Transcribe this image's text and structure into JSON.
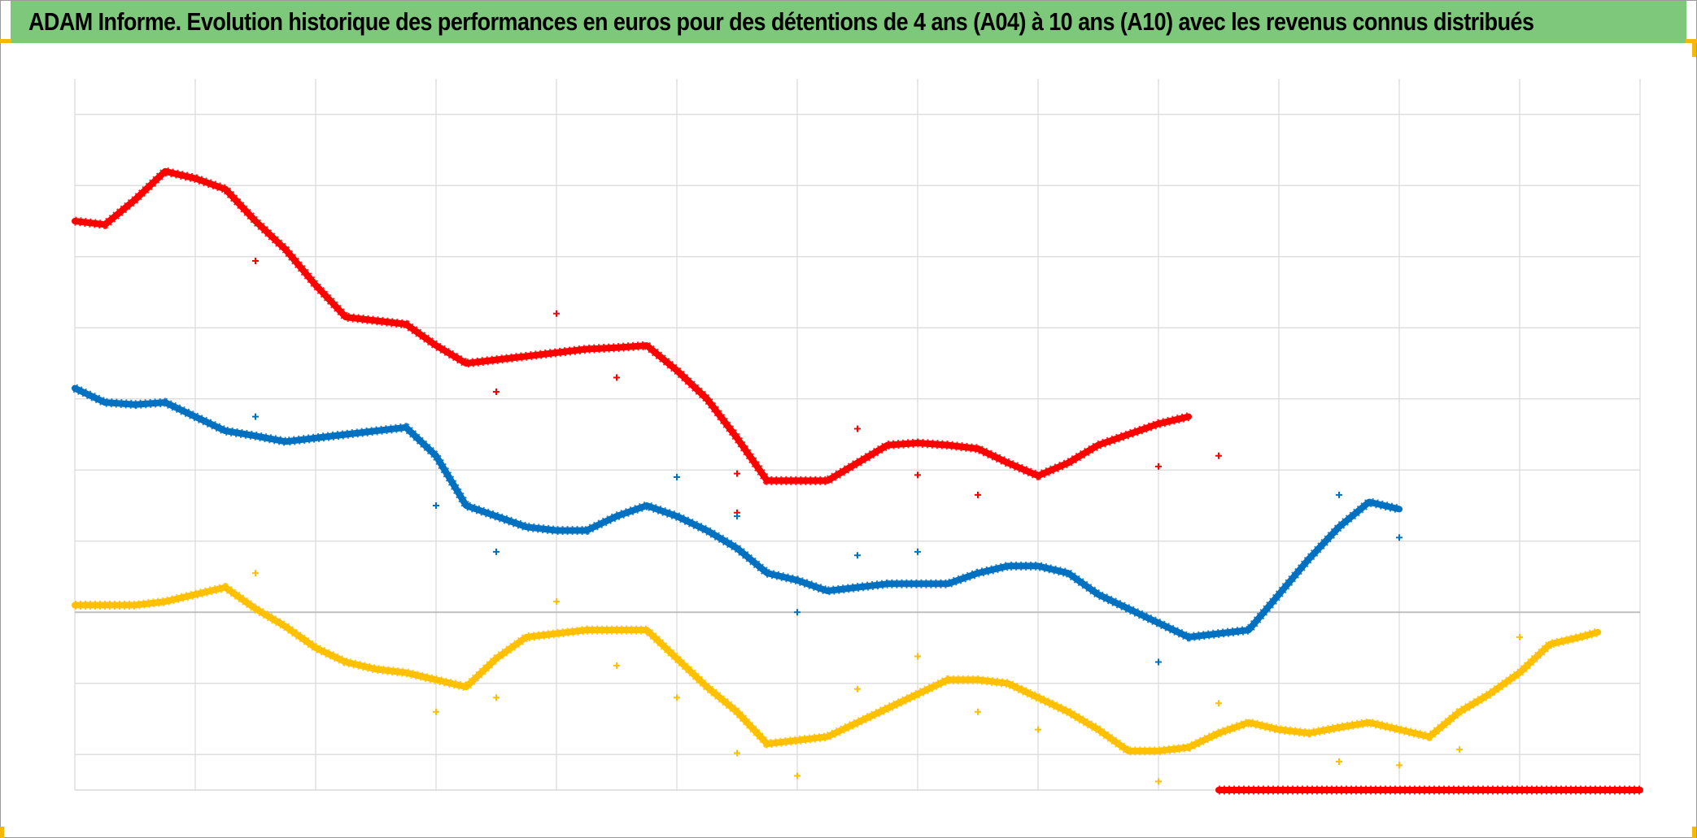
{
  "header": {
    "title": "ADAM Informe. Evolution historique des performances en euros pour des détentions de 4 ans (A04) à 10 ans (A10) avec les revenus connus distribués"
  },
  "colors": {
    "title_bg": "#7dc87a",
    "grid": "#d9d9d9",
    "zero_line": "#bfbfbf",
    "corner_marks": "#f2b90a"
  },
  "chart_data": {
    "type": "scatter",
    "title": "ADAM Informe. Evolution historique des performances en euros pour des détentions de 4 ans (A04) à 10 ans (A10) avec les revenus connus distribués",
    "xlabel": "",
    "ylabel": "",
    "xlim": [
      0,
      13
    ],
    "ylim": [
      -2.5,
      7.5
    ],
    "grid": true,
    "legend": "none",
    "tick_labels_visible": false,
    "series": [
      {
        "color": "#ff0000",
        "line": [
          [
            0,
            5.5
          ],
          [
            0.25,
            5.45
          ],
          [
            0.5,
            5.8
          ],
          [
            0.75,
            6.2
          ],
          [
            1,
            6.1
          ],
          [
            1.25,
            5.95
          ],
          [
            1.5,
            5.5
          ],
          [
            1.75,
            5.1
          ],
          [
            2,
            4.6
          ],
          [
            2.25,
            4.15
          ],
          [
            2.5,
            4.1
          ],
          [
            2.75,
            4.05
          ],
          [
            3,
            3.75
          ],
          [
            3.25,
            3.5
          ],
          [
            3.5,
            3.55
          ],
          [
            3.75,
            3.6
          ],
          [
            4,
            3.65
          ],
          [
            4.25,
            3.7
          ],
          [
            4.5,
            3.72
          ],
          [
            4.75,
            3.75
          ],
          [
            5,
            3.4
          ],
          [
            5.25,
            3.0
          ],
          [
            5.5,
            2.45
          ],
          [
            5.75,
            1.85
          ],
          [
            6,
            1.85
          ],
          [
            6.25,
            1.85
          ],
          [
            6.5,
            2.1
          ],
          [
            6.75,
            2.35
          ],
          [
            7,
            2.38
          ],
          [
            7.25,
            2.35
          ],
          [
            7.5,
            2.3
          ],
          [
            7.75,
            2.1
          ],
          [
            8,
            1.92
          ],
          [
            8.25,
            2.1
          ],
          [
            8.5,
            2.35
          ],
          [
            8.75,
            2.5
          ],
          [
            9,
            2.65
          ],
          [
            9.25,
            2.75
          ]
        ],
        "markers": [
          [
            1.5,
            4.94
          ],
          [
            3.5,
            3.1
          ],
          [
            4,
            4.2
          ],
          [
            4.5,
            3.3
          ],
          [
            6.5,
            2.58
          ],
          [
            5.5,
            1.95
          ],
          [
            7,
            1.93
          ],
          [
            5.5,
            1.4
          ],
          [
            7.5,
            1.65
          ],
          [
            9,
            2.05
          ],
          [
            9.5,
            2.2
          ]
        ]
      },
      {
        "color": "#0070c0",
        "line": [
          [
            0,
            3.15
          ],
          [
            0.25,
            2.95
          ],
          [
            0.5,
            2.92
          ],
          [
            0.75,
            2.95
          ],
          [
            1,
            2.75
          ],
          [
            1.25,
            2.55
          ],
          [
            1.5,
            2.48
          ],
          [
            1.75,
            2.4
          ],
          [
            2,
            2.45
          ],
          [
            2.25,
            2.5
          ],
          [
            2.5,
            2.55
          ],
          [
            2.75,
            2.6
          ],
          [
            3,
            2.2
          ],
          [
            3.25,
            1.5
          ],
          [
            3.5,
            1.35
          ],
          [
            3.75,
            1.2
          ],
          [
            4,
            1.15
          ],
          [
            4.25,
            1.15
          ],
          [
            4.5,
            1.35
          ],
          [
            4.75,
            1.5
          ],
          [
            5,
            1.35
          ],
          [
            5.25,
            1.15
          ],
          [
            5.5,
            0.9
          ],
          [
            5.75,
            0.55
          ],
          [
            6,
            0.45
          ],
          [
            6.25,
            0.3
          ],
          [
            6.5,
            0.35
          ],
          [
            6.75,
            0.4
          ],
          [
            7,
            0.4
          ],
          [
            7.25,
            0.4
          ],
          [
            7.5,
            0.55
          ],
          [
            7.75,
            0.65
          ],
          [
            8,
            0.65
          ],
          [
            8.25,
            0.55
          ],
          [
            8.5,
            0.25
          ],
          [
            8.75,
            0.05
          ],
          [
            9,
            -0.15
          ],
          [
            9.25,
            -0.35
          ],
          [
            9.5,
            -0.3
          ],
          [
            9.75,
            -0.25
          ],
          [
            10,
            0.25
          ],
          [
            10.25,
            0.75
          ],
          [
            10.5,
            1.2
          ],
          [
            10.75,
            1.55
          ],
          [
            11,
            1.45
          ]
        ],
        "markers": [
          [
            1.5,
            2.75
          ],
          [
            3,
            1.5
          ],
          [
            3.5,
            0.85
          ],
          [
            5,
            1.9
          ],
          [
            5.5,
            1.35
          ],
          [
            6,
            0.0
          ],
          [
            6.5,
            0.8
          ],
          [
            7,
            0.85
          ],
          [
            9,
            -0.7
          ],
          [
            10.5,
            1.65
          ],
          [
            11,
            1.05
          ]
        ]
      },
      {
        "color": "#ffc000",
        "line": [
          [
            0,
            0.1
          ],
          [
            0.25,
            0.1
          ],
          [
            0.5,
            0.1
          ],
          [
            0.75,
            0.15
          ],
          [
            1,
            0.25
          ],
          [
            1.25,
            0.35
          ],
          [
            1.5,
            0.05
          ],
          [
            1.75,
            -0.2
          ],
          [
            2,
            -0.5
          ],
          [
            2.25,
            -0.7
          ],
          [
            2.5,
            -0.8
          ],
          [
            2.75,
            -0.85
          ],
          [
            3,
            -0.95
          ],
          [
            3.25,
            -1.05
          ],
          [
            3.5,
            -0.65
          ],
          [
            3.75,
            -0.35
          ],
          [
            4,
            -0.3
          ],
          [
            4.25,
            -0.25
          ],
          [
            4.5,
            -0.25
          ],
          [
            4.75,
            -0.25
          ],
          [
            5,
            -0.65
          ],
          [
            5.25,
            -1.05
          ],
          [
            5.5,
            -1.4
          ],
          [
            5.75,
            -1.85
          ],
          [
            6,
            -1.8
          ],
          [
            6.25,
            -1.75
          ],
          [
            6.5,
            -1.55
          ],
          [
            6.75,
            -1.35
          ],
          [
            7,
            -1.15
          ],
          [
            7.25,
            -0.95
          ],
          [
            7.5,
            -0.95
          ],
          [
            7.75,
            -1.0
          ],
          [
            8,
            -1.2
          ],
          [
            8.25,
            -1.4
          ],
          [
            8.5,
            -1.65
          ],
          [
            8.75,
            -1.95
          ],
          [
            9,
            -1.95
          ],
          [
            9.25,
            -1.9
          ],
          [
            9.5,
            -1.7
          ],
          [
            9.75,
            -1.55
          ],
          [
            10,
            -1.65
          ],
          [
            10.25,
            -1.7
          ],
          [
            10.5,
            -1.62
          ],
          [
            10.75,
            -1.55
          ],
          [
            11,
            -1.65
          ],
          [
            11.25,
            -1.75
          ],
          [
            11.5,
            -1.4
          ],
          [
            11.75,
            -1.15
          ],
          [
            12,
            -0.85
          ],
          [
            12.25,
            -0.45
          ],
          [
            12.5,
            -0.35
          ],
          [
            12.65,
            -0.28
          ]
        ],
        "markers": [
          [
            1.5,
            0.55
          ],
          [
            4,
            0.15
          ],
          [
            3,
            -1.4
          ],
          [
            3.5,
            -1.2
          ],
          [
            4.5,
            -0.75
          ],
          [
            5,
            -1.2
          ],
          [
            5.5,
            -1.98
          ],
          [
            6,
            -2.3
          ],
          [
            6.5,
            -1.08
          ],
          [
            7,
            -0.62
          ],
          [
            7.5,
            -1.4
          ],
          [
            8,
            -1.65
          ],
          [
            9,
            -2.38
          ],
          [
            9.5,
            -1.28
          ],
          [
            10.5,
            -2.1
          ],
          [
            11,
            -2.15
          ],
          [
            11.5,
            -1.93
          ],
          [
            12,
            -0.35
          ]
        ]
      },
      {
        "color": "#ff0000",
        "line": [
          [
            9.5,
            -2.5
          ],
          [
            13,
            -2.5
          ]
        ],
        "markers": []
      }
    ]
  }
}
